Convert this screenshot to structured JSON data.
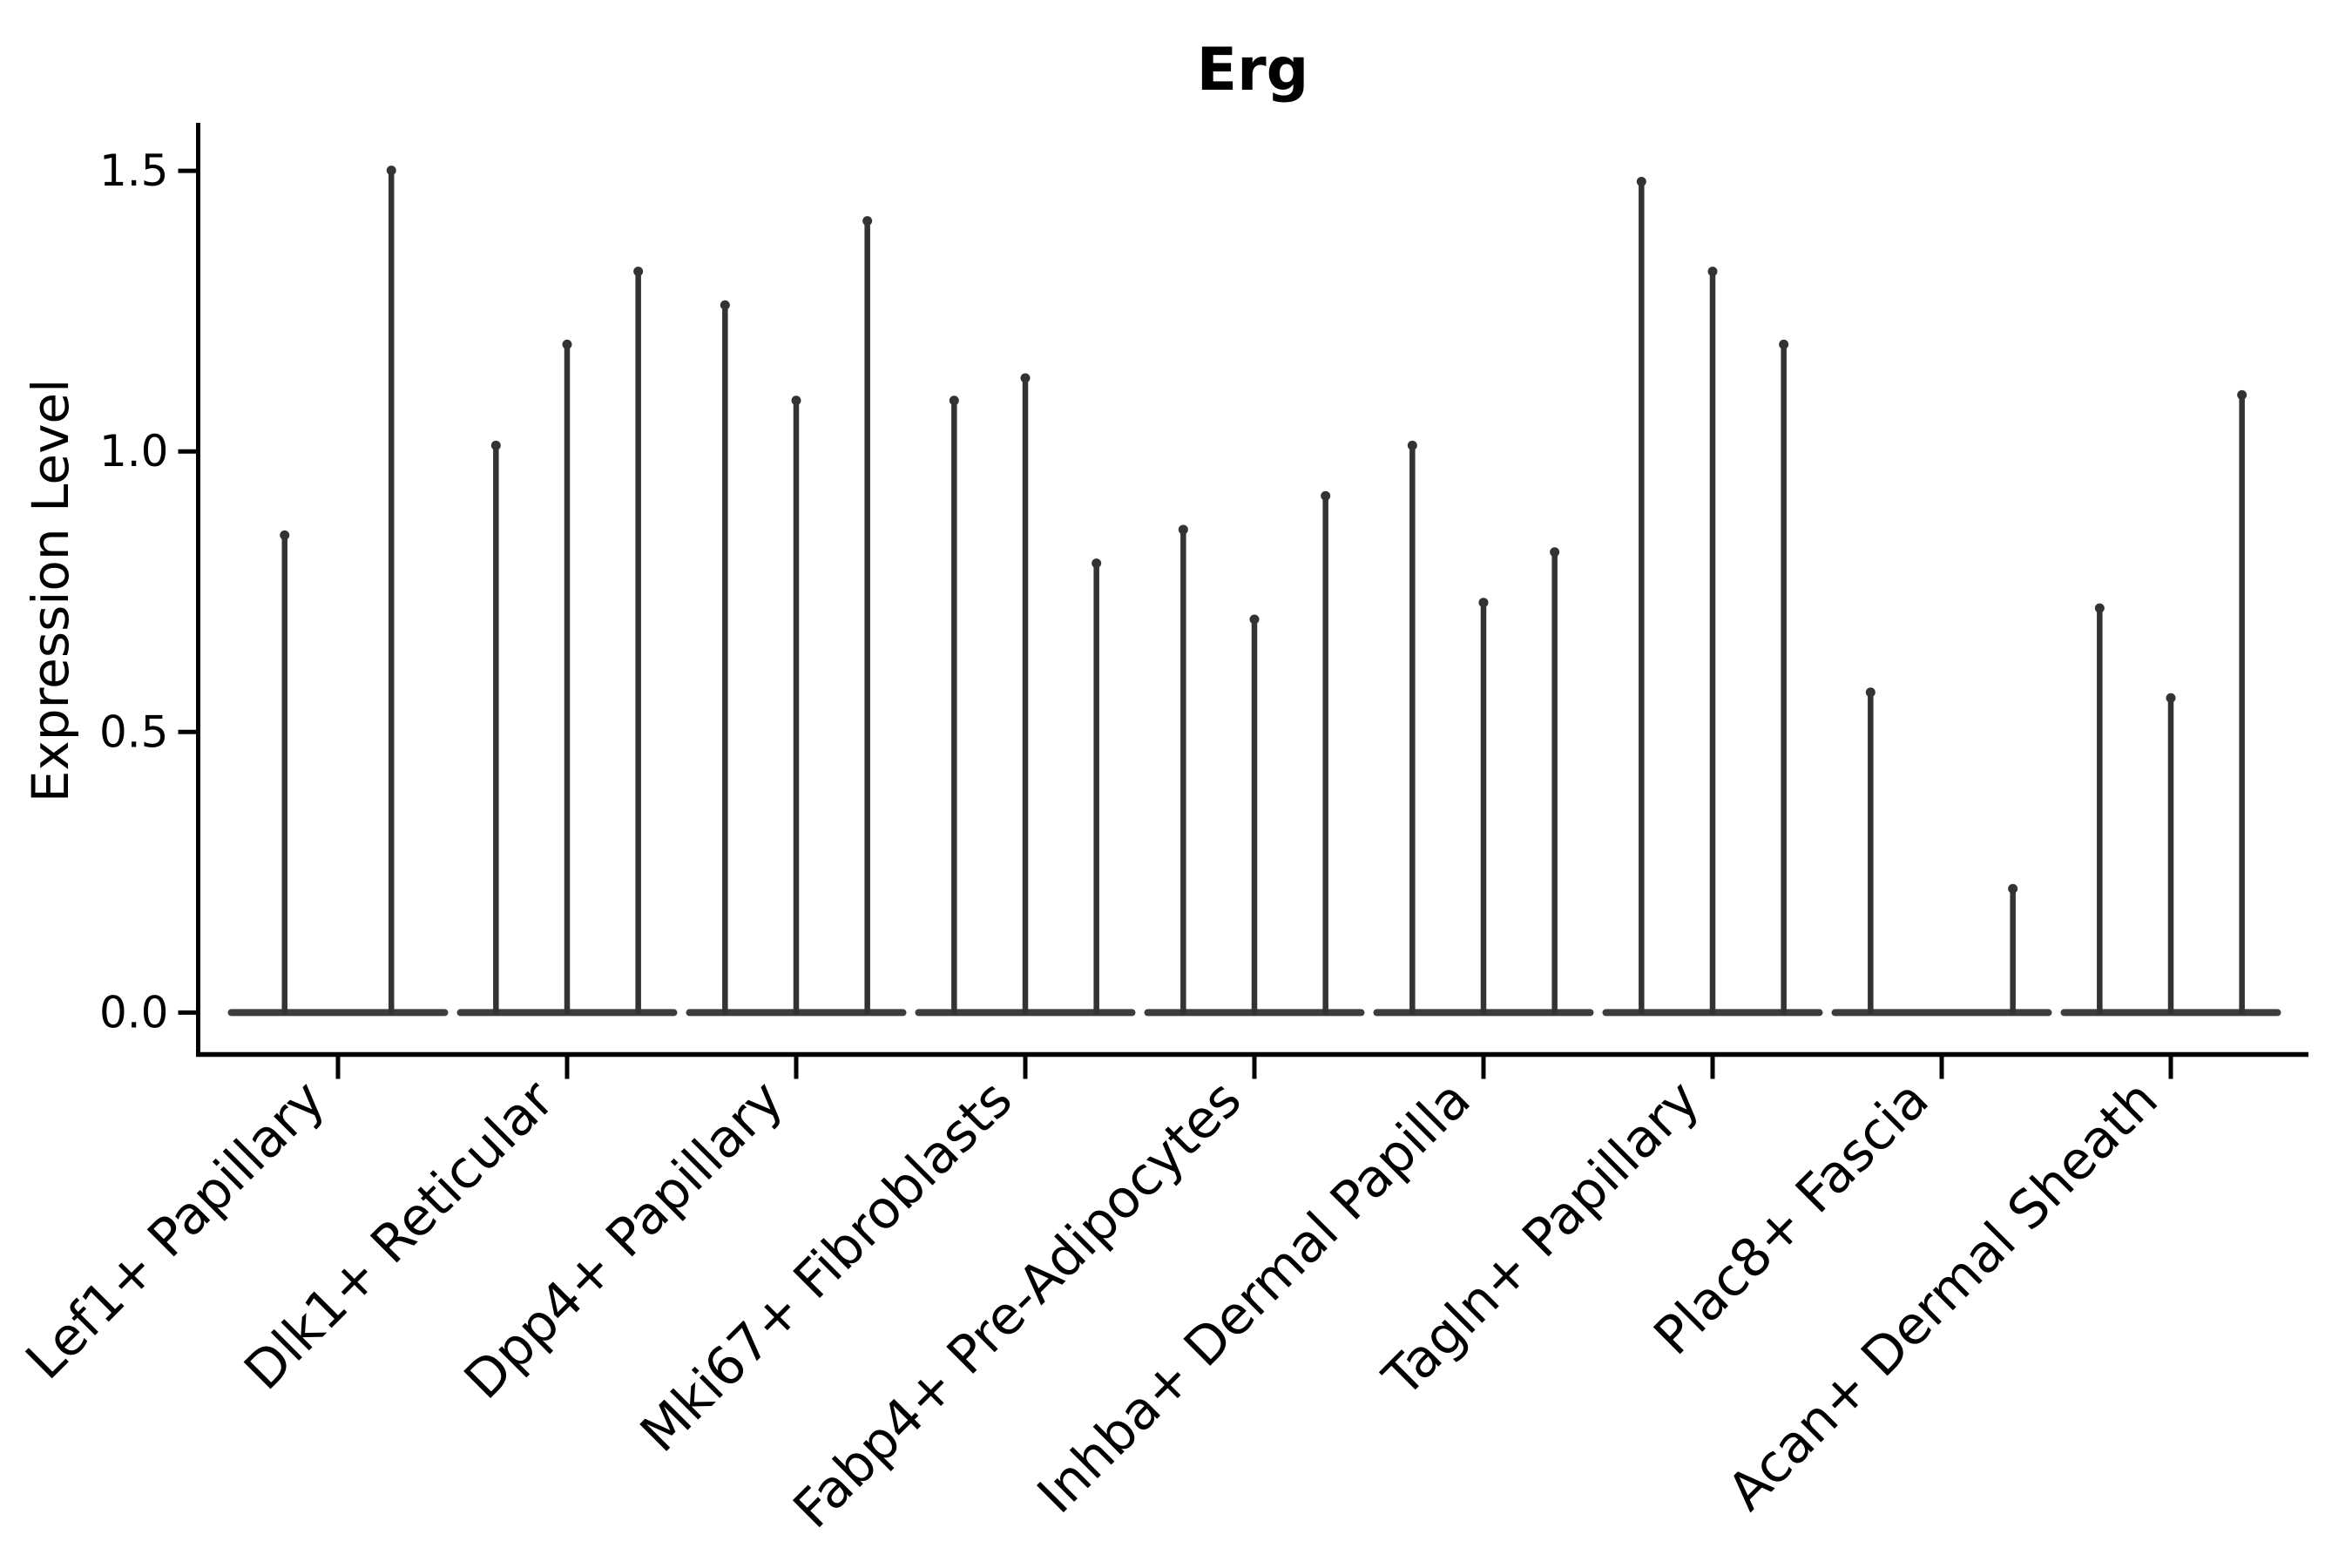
{
  "figure": {
    "background_color": "#ffffff",
    "text_color": "#000000",
    "spine_color": "#000000",
    "violin_line_color": "#333333",
    "violin_base_color": "#3d3d3d"
  },
  "chart_data": {
    "type": "violin",
    "title": "Erg",
    "xlabel": "",
    "ylabel": "Expression Level",
    "ylim": [
      -0.08,
      1.59
    ],
    "yticks": [
      "0.0",
      "0.5",
      "1.0",
      "1.5"
    ],
    "ytick_values": [
      0,
      0.5,
      1.0,
      1.5
    ],
    "grid": false,
    "legend_position": "none",
    "style": "needle-thin violins (almost all mass at 0), black outlines on white, Seurat VlnPlot look",
    "categories": [
      "Lef1+ Papillary",
      "Dlk1+ Reticular",
      "Dpp4+ Papillary",
      "Mki67+ Fibroblasts",
      "Fabp4+ Pre-Adipocytes",
      "Inhba+ Dermal Papilla",
      "Tagln+ Papillary",
      "Plac8+ Fascia",
      "Acan+ Dermal Sheath"
    ],
    "groups": [
      {
        "category": "Lef1+ Papillary",
        "violin_maxima": [
          0.86,
          1.51
        ]
      },
      {
        "category": "Dlk1+ Reticular",
        "violin_maxima": [
          1.02,
          1.2,
          1.33
        ]
      },
      {
        "category": "Dpp4+ Papillary",
        "violin_maxima": [
          1.27,
          1.1,
          1.42
        ]
      },
      {
        "category": "Mki67+ Fibroblasts",
        "violin_maxima": [
          1.1,
          1.14,
          0.81
        ]
      },
      {
        "category": "Fabp4+ Pre-Adipocytes",
        "violin_maxima": [
          0.87,
          0.71,
          0.93
        ]
      },
      {
        "category": "Inhba+ Dermal Papilla",
        "violin_maxima": [
          1.02,
          0.74,
          0.83
        ]
      },
      {
        "category": "Tagln+ Papillary",
        "violin_maxima": [
          1.49,
          1.33,
          1.2
        ]
      },
      {
        "category": "Plac8+ Fascia",
        "violin_maxima": [
          0.58,
          0,
          0.23
        ]
      },
      {
        "category": "Acan+ Dermal Sheath",
        "violin_maxima": [
          0.73,
          0.57,
          1.11
        ]
      }
    ]
  }
}
